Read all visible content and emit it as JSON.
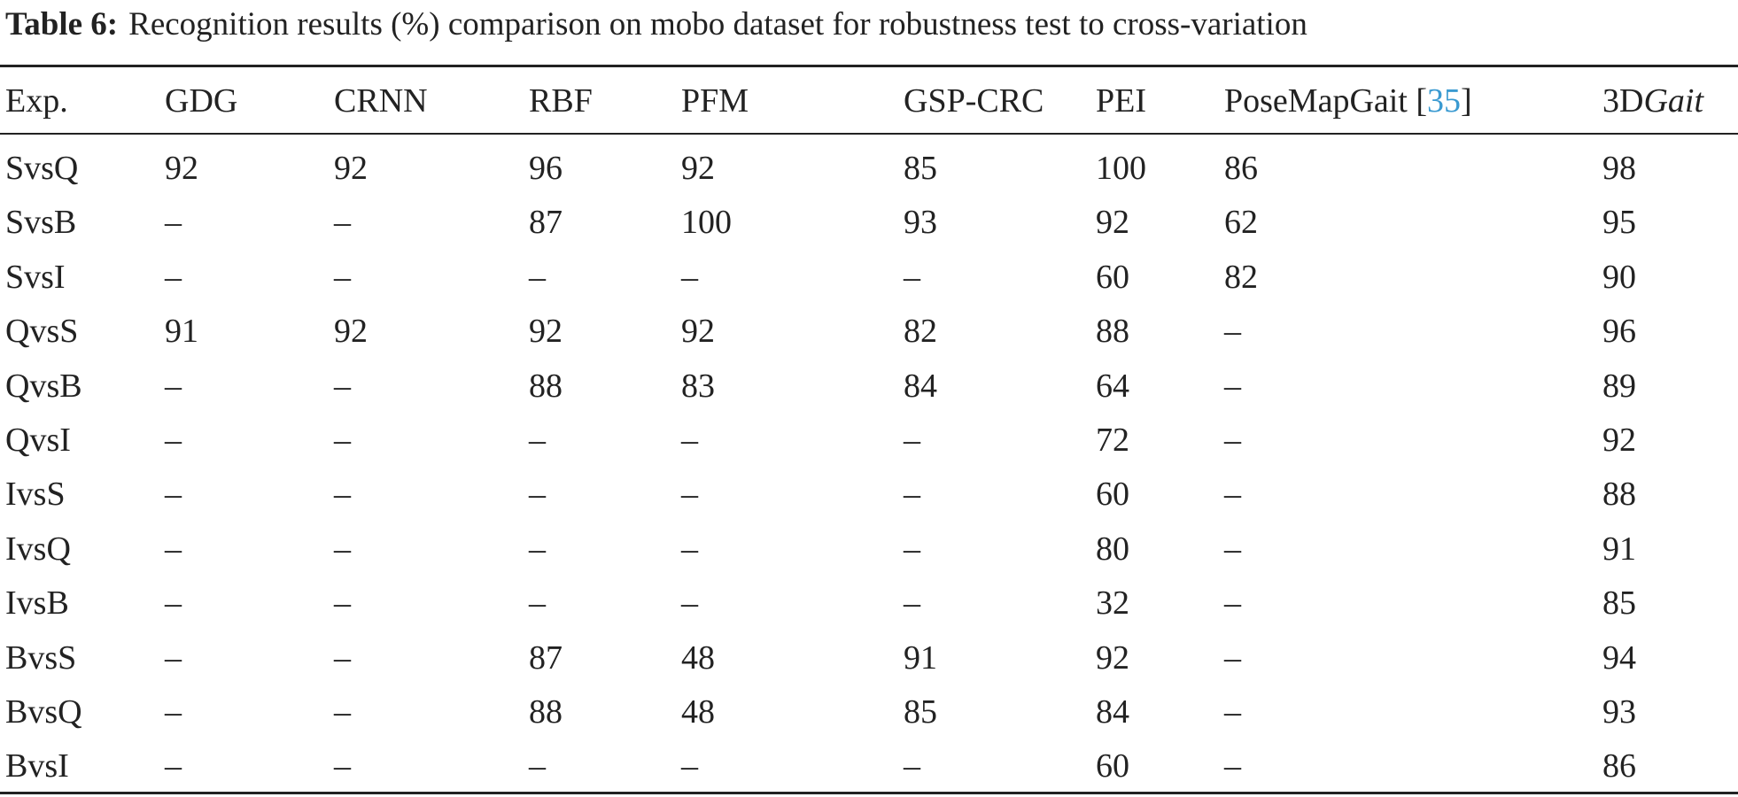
{
  "caption": {
    "label": "Table 6:",
    "text": "Recognition results (%) comparison on mobo dataset for robustness test to cross-variation"
  },
  "table": {
    "header": [
      "Exp.",
      "GDG",
      "CRNN",
      "RBF",
      "PFM",
      "GSP-CRC",
      "PEI",
      [
        "PoseMapGait [",
        "35",
        "]"
      ],
      [
        "3D",
        "Gait"
      ]
    ],
    "rows": [
      [
        "SvsQ",
        92,
        92,
        96,
        92,
        85,
        100,
        86,
        98
      ],
      [
        "SvsB",
        "–",
        "–",
        87,
        100,
        93,
        92,
        62,
        95
      ],
      [
        "SvsI",
        "–",
        "–",
        "–",
        "–",
        "–",
        60,
        82,
        90
      ],
      [
        "QvsS",
        91,
        92,
        92,
        92,
        82,
        88,
        "–",
        96
      ],
      [
        "QvsB",
        "–",
        "–",
        88,
        83,
        84,
        64,
        "–",
        89
      ],
      [
        "QvsI",
        "–",
        "–",
        "–",
        "–",
        "–",
        72,
        "–",
        92
      ],
      [
        "IvsS",
        "–",
        "–",
        "–",
        "–",
        "–",
        60,
        "–",
        88
      ],
      [
        "IvsQ",
        "–",
        "–",
        "–",
        "–",
        "–",
        80,
        "–",
        91
      ],
      [
        "IvsB",
        "–",
        "–",
        "–",
        "–",
        "–",
        32,
        "–",
        85
      ],
      [
        "BvsS",
        "–",
        "–",
        87,
        48,
        91,
        92,
        "–",
        94
      ],
      [
        "BvsQ",
        "–",
        "–",
        88,
        48,
        85,
        84,
        "–",
        93
      ],
      [
        "BvsI",
        "–",
        "–",
        "–",
        "–",
        "–",
        60,
        "–",
        86
      ]
    ]
  }
}
